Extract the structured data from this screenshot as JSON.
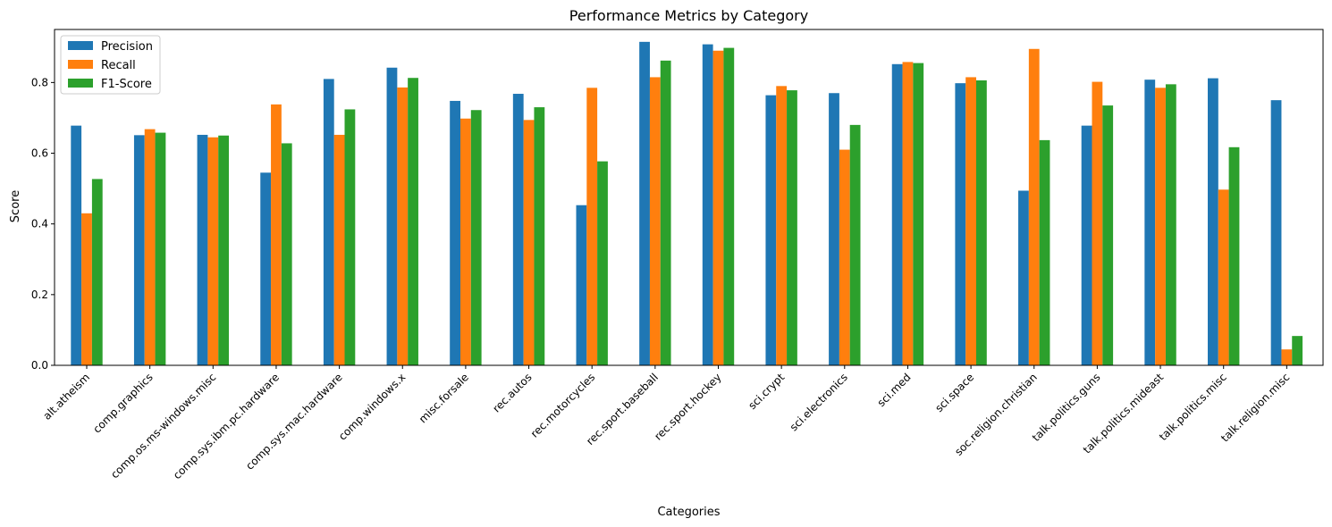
{
  "chart_data": {
    "type": "bar",
    "title": "Performance Metrics by Category",
    "xlabel": "Categories",
    "ylabel": "Score",
    "ylim": [
      0,
      0.95
    ],
    "yticks": [
      "0.0",
      "0.2",
      "0.4",
      "0.6",
      "0.8"
    ],
    "grid": false,
    "legend_position": "top-left",
    "categories": [
      "alt.atheism",
      "comp.graphics",
      "comp.os.ms-windows.misc",
      "comp.sys.ibm.pc.hardware",
      "comp.sys.mac.hardware",
      "comp.windows.x",
      "misc.forsale",
      "rec.autos",
      "rec.motorcycles",
      "rec.sport.baseball",
      "rec.sport.hockey",
      "sci.crypt",
      "sci.electronics",
      "sci.med",
      "sci.space",
      "soc.religion.christian",
      "talk.politics.guns",
      "talk.politics.mideast",
      "talk.politics.misc",
      "talk.religion.misc"
    ],
    "series": [
      {
        "name": "Precision",
        "color": "#1f77b4",
        "values": [
          0.678,
          0.651,
          0.652,
          0.545,
          0.81,
          0.842,
          0.748,
          0.768,
          0.453,
          0.915,
          0.908,
          0.764,
          0.77,
          0.852,
          0.798,
          0.494,
          0.678,
          0.808,
          0.812,
          0.75
        ]
      },
      {
        "name": "Recall",
        "color": "#ff7f0e",
        "values": [
          0.43,
          0.668,
          0.645,
          0.738,
          0.652,
          0.786,
          0.698,
          0.694,
          0.785,
          0.815,
          0.89,
          0.79,
          0.61,
          0.858,
          0.815,
          0.895,
          0.802,
          0.785,
          0.497,
          0.045
        ]
      },
      {
        "name": "F1-Score",
        "color": "#2ca02c",
        "values": [
          0.527,
          0.658,
          0.65,
          0.628,
          0.724,
          0.813,
          0.722,
          0.73,
          0.577,
          0.862,
          0.898,
          0.778,
          0.68,
          0.855,
          0.806,
          0.637,
          0.735,
          0.795,
          0.617,
          0.083
        ]
      }
    ]
  }
}
